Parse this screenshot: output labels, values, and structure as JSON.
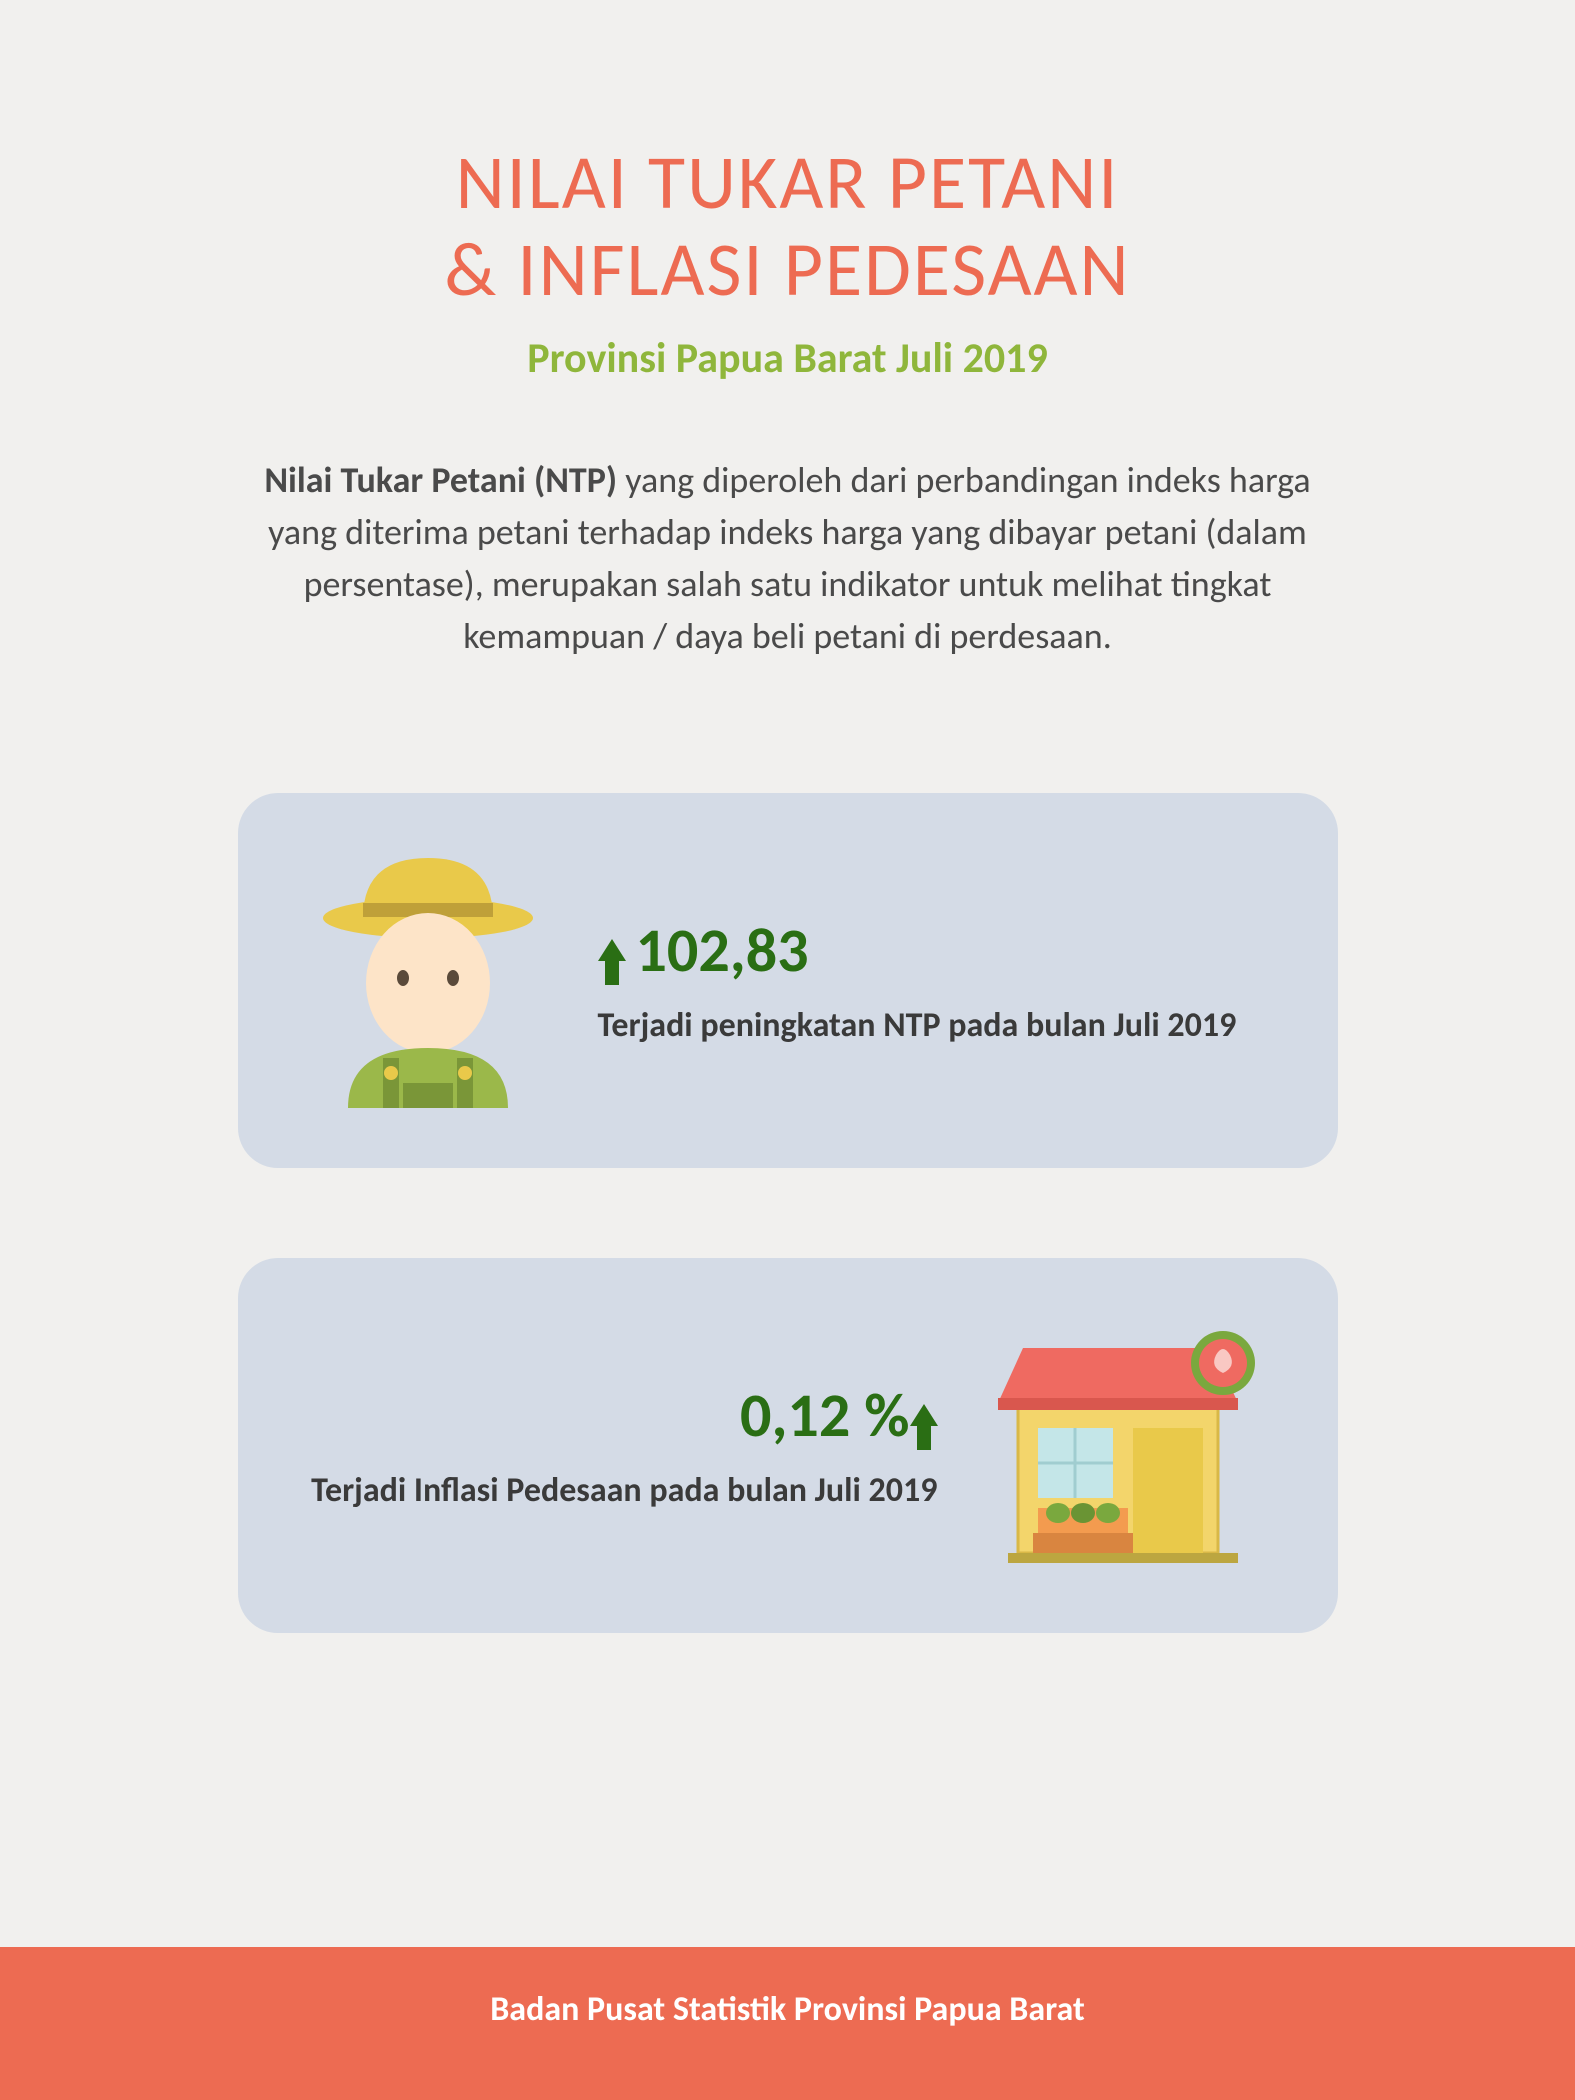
{
  "colors": {
    "background": "#f1f0ee",
    "title": "#ed6b52",
    "subtitle": "#8fb63b",
    "body_text": "#4a4a4a",
    "card_bg": "#d4dbe6",
    "stat_green": "#2a6e14",
    "stat_desc": "#3a3a3a",
    "footer_bg": "#ed6b52",
    "footer_text": "#ffffff",
    "farmer_hat": "#e9c94a",
    "farmer_hat_band": "#bfa039",
    "farmer_skin": "#fde4c8",
    "farmer_overalls": "#9bb84a",
    "shop_roof": "#ef6a61",
    "shop_wall": "#f3d56b",
    "shop_window": "#c4e6e8",
    "shop_sign": "#ef6a61",
    "shop_awning": "#f39b4f",
    "shop_green": "#7aa83e"
  },
  "typography": {
    "title_fontsize": 76,
    "subtitle_fontsize": 42,
    "description_fontsize": 36,
    "stat_value_fontsize": 62,
    "stat_desc_fontsize": 34,
    "footer_fontsize": 34
  },
  "header": {
    "title_line1": "NILAI TUKAR PETANI",
    "title_line2": "& INFLASI PEDESAAN",
    "subtitle": "Provinsi Papua Barat Juli 2019"
  },
  "description": {
    "bold_lead": "Nilai Tukar Petani (NTP) ",
    "rest": "yang diperoleh dari perbandingan indeks harga yang diterima petani terhadap indeks harga yang dibayar petani (dalam persentase), merupakan salah satu indikator untuk melihat tingkat kemampuan / daya beli petani di perdesaan."
  },
  "card1": {
    "value": "102,83",
    "desc": "Terjadi peningkatan NTP pada bulan Juli 2019",
    "arrow_color": "#2a6e14",
    "icon": "farmer"
  },
  "card2": {
    "value": "0,12 %",
    "desc": "Terjadi Inflasi Pedesaan pada bulan Juli 2019",
    "arrow_color": "#2a6e14",
    "icon": "shop"
  },
  "footer": {
    "text": "Badan Pusat Statistik Provinsi Papua Barat"
  }
}
